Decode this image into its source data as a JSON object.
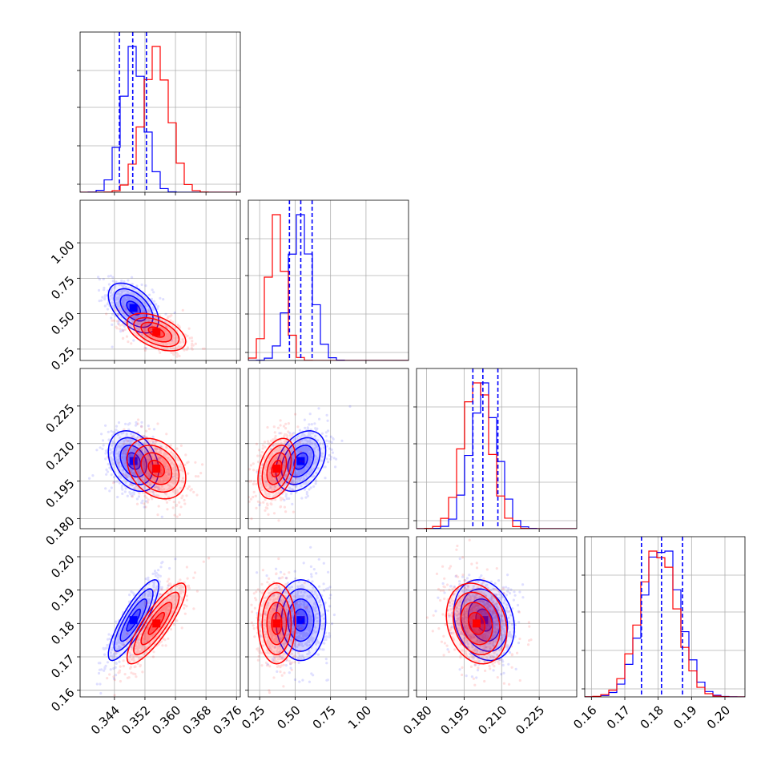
{
  "chart_data": {
    "type": "corner",
    "parameters": 4,
    "grid": true,
    "colors": {
      "blue": "#0000ff",
      "red": "#ff0000"
    },
    "series": [
      {
        "color": "#0000ff",
        "means": [
          0.349,
          0.54,
          0.203,
          0.181
        ],
        "sds": [
          0.003,
          0.08,
          0.0055,
          0.0055
        ],
        "quantiles": [
          [
            0.3453,
            0.3488,
            0.3524
          ],
          [
            0.46,
            0.54,
            0.62
          ],
          [
            0.1985,
            0.2025,
            0.2085
          ],
          [
            0.175,
            0.181,
            0.1873
          ]
        ]
      },
      {
        "color": "#ff0000",
        "means": [
          0.355,
          0.37,
          0.2,
          0.18
        ],
        "sds": [
          0.0035,
          0.06,
          0.0055,
          0.0055
        ]
      }
    ],
    "axes": [
      {
        "xlim": [
          0.335,
          0.377
        ],
        "xticks": [
          "0.344",
          "0.352",
          "0.360",
          "0.368",
          "0.376"
        ],
        "xtick_values": [
          0.344,
          0.352,
          0.36,
          0.368,
          0.376
        ]
      },
      {
        "xlim": [
          0.17,
          1.3
        ],
        "xticks": [
          "0.25",
          "0.50",
          "0.75",
          "1.00"
        ],
        "xtick_values": [
          0.25,
          0.5,
          0.75,
          1.0
        ]
      },
      {
        "xlim": [
          0.176,
          0.24
        ],
        "xticks": [
          "0.180",
          "0.195",
          "0.210",
          "0.225"
        ],
        "xtick_values": [
          0.18,
          0.195,
          0.21,
          0.225
        ]
      },
      {
        "xlim": [
          0.158,
          0.206
        ],
        "xticks": [
          "0.16",
          "0.17",
          "0.18",
          "0.19",
          "0.20"
        ],
        "xtick_values": [
          0.16,
          0.17,
          0.18,
          0.19,
          0.2
        ]
      }
    ],
    "row_yticks": [
      null,
      {
        "labels": [
          "0.25",
          "0.50",
          "0.75",
          "1.00"
        ],
        "values": [
          0.25,
          0.5,
          0.75,
          1.0
        ]
      },
      {
        "labels": [
          "0.180",
          "0.195",
          "0.210",
          "0.225"
        ],
        "values": [
          0.18,
          0.195,
          0.21,
          0.225
        ]
      },
      {
        "labels": [
          "0.16",
          "0.17",
          "0.18",
          "0.19",
          "0.20"
        ],
        "values": [
          0.16,
          0.17,
          0.18,
          0.19,
          0.2
        ]
      }
    ]
  }
}
